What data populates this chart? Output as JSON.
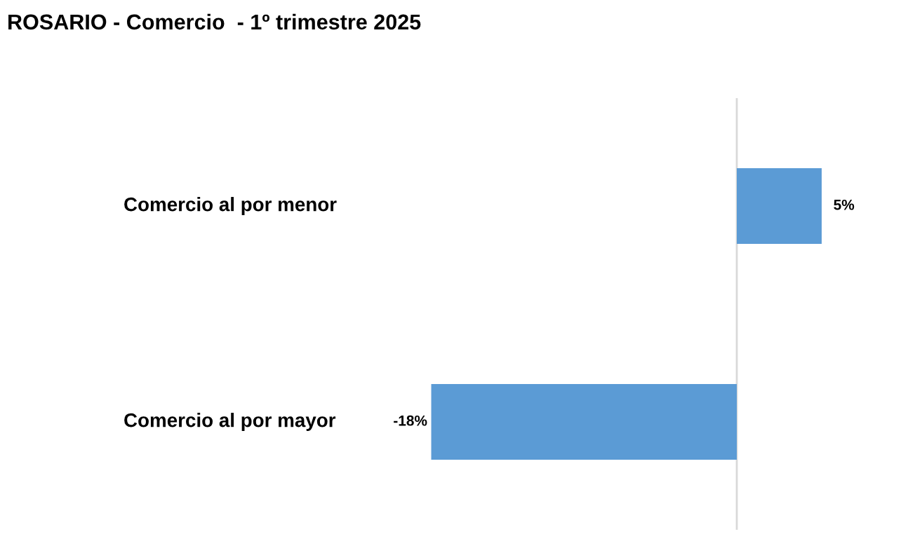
{
  "chart_data": {
    "type": "bar",
    "orientation": "horizontal",
    "title": "ROSARIO - Comercio  - 1º trimestre 2025",
    "categories": [
      "Comercio al por menor",
      "Comercio al por mayor"
    ],
    "series": [
      {
        "color": "#5b9bd5",
        "values": [
          5,
          -18
        ],
        "value_labels": [
          "5%",
          "-18%"
        ]
      }
    ],
    "legend": false
  }
}
